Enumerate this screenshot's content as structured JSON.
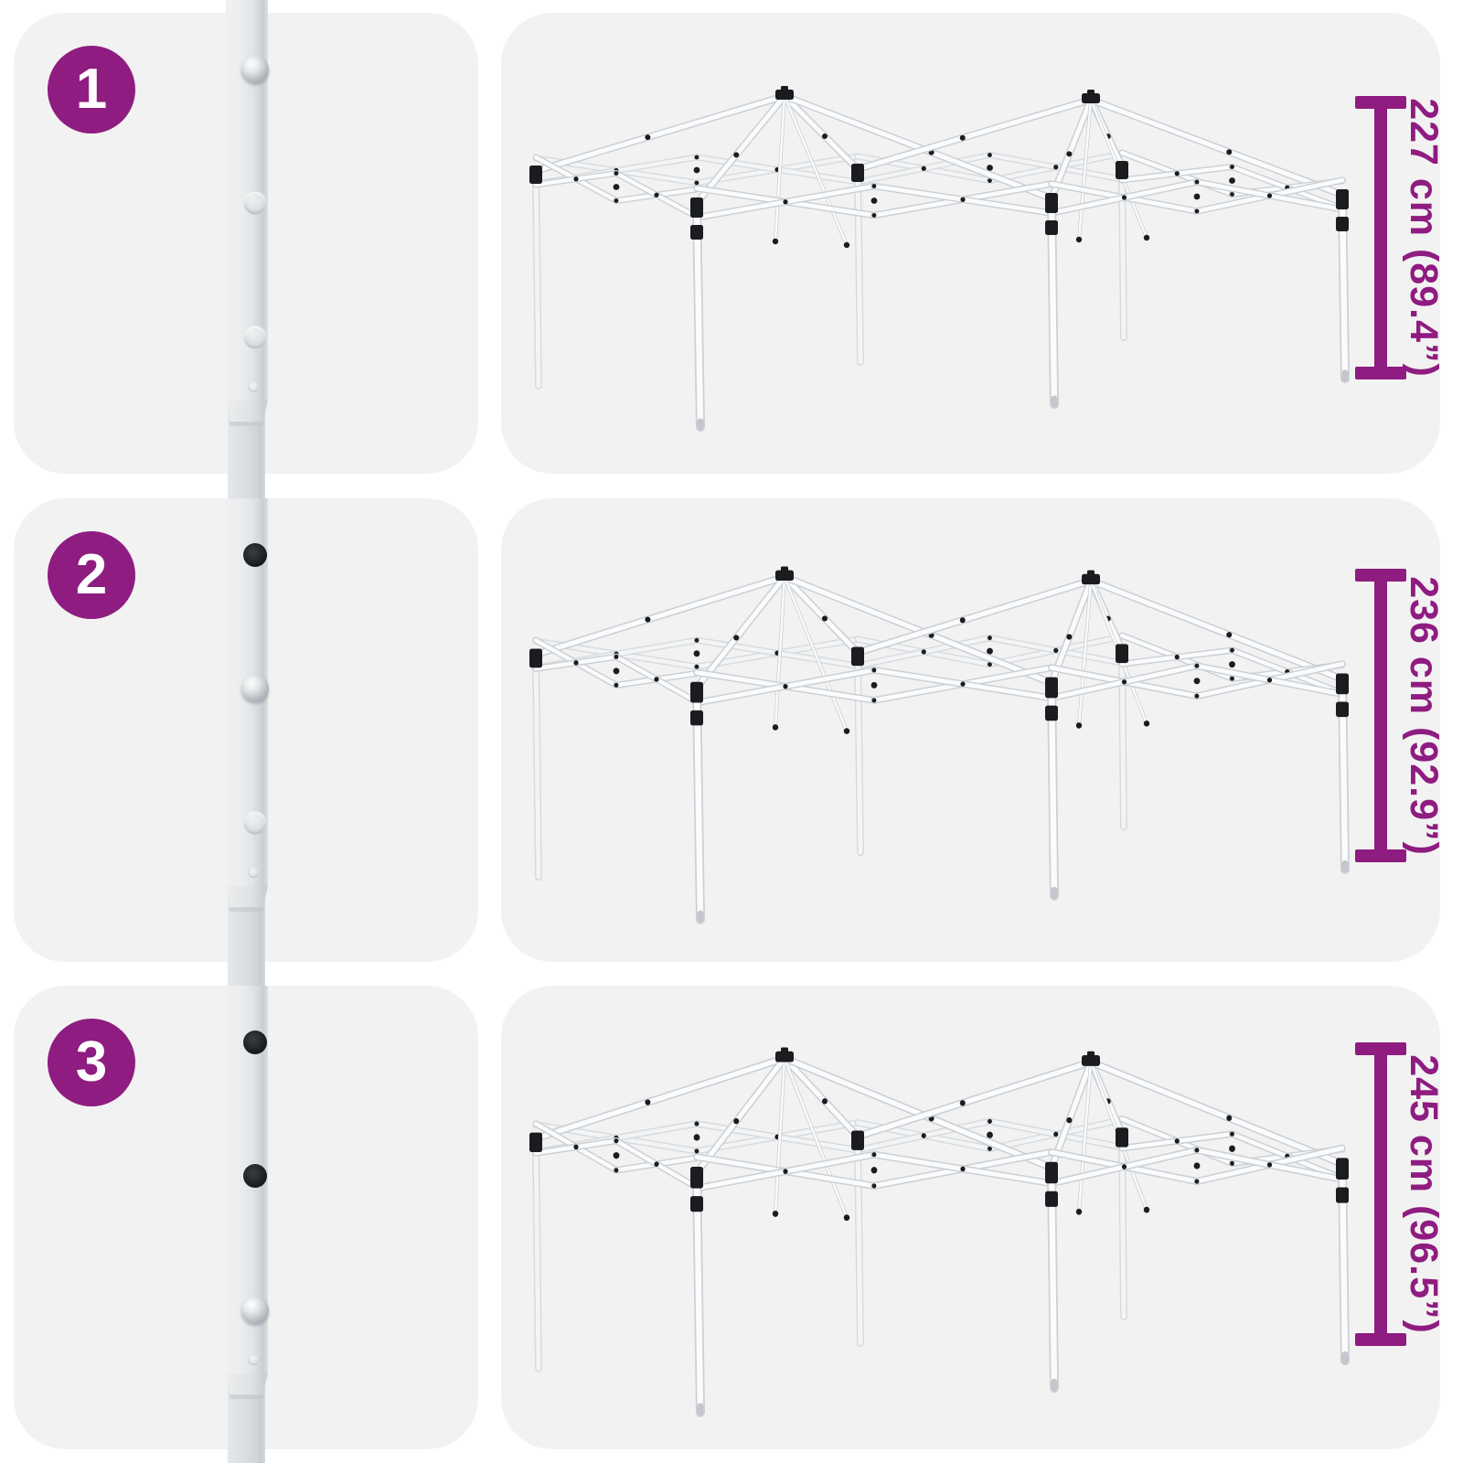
{
  "accent_color": "#8F1C80",
  "card_background": "#F2F2F2",
  "steps": [
    {
      "step_number": "1",
      "height_label": "227 cm (89.4”)",
      "pole_holes": [
        "button",
        "empty",
        "empty"
      ]
    },
    {
      "step_number": "2",
      "height_label": "236 cm (92.9”)",
      "pole_holes": [
        "open",
        "button",
        "empty"
      ]
    },
    {
      "step_number": "3",
      "height_label": "245 cm (96.5”)",
      "pole_holes": [
        "open",
        "open",
        "button"
      ]
    }
  ],
  "icons": {
    "left_illustration": "telescoping-leg-adjustment-detail",
    "right_illustration": "popup-gazebo-steel-frame"
  }
}
